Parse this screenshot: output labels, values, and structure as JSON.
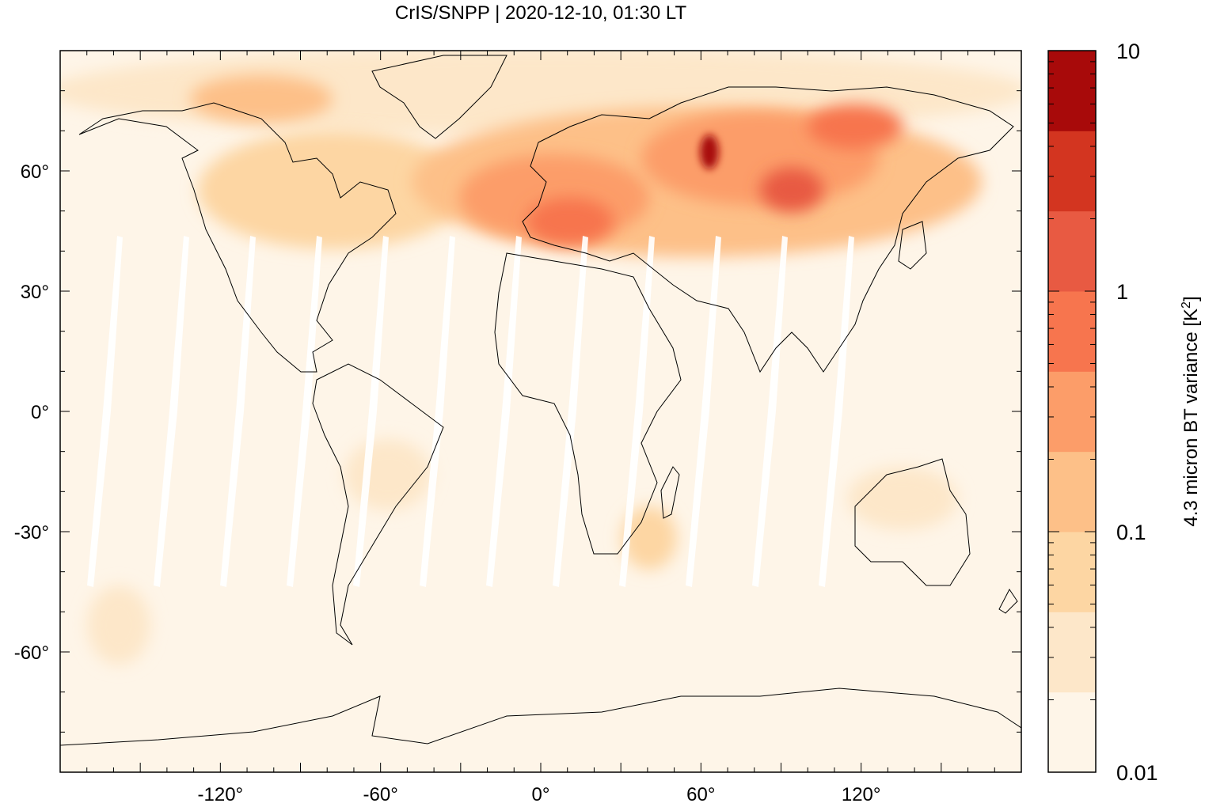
{
  "title": "CrIS/SNPP | 2020-12-10, 01:30 LT",
  "map": {
    "projection": "equirectangular",
    "lon_range": [
      -180,
      180
    ],
    "lat_range": [
      -90,
      90
    ],
    "x_ticks": [
      {
        "value": -120,
        "label": "-120°"
      },
      {
        "value": -60,
        "label": "-60°"
      },
      {
        "value": 0,
        "label": "0°"
      },
      {
        "value": 60,
        "label": "60°"
      },
      {
        "value": 120,
        "label": "120°"
      }
    ],
    "y_ticks": [
      {
        "value": 60,
        "label": "60°"
      },
      {
        "value": 30,
        "label": "30°"
      },
      {
        "value": 0,
        "label": "0°"
      },
      {
        "value": -30,
        "label": "-30°"
      },
      {
        "value": -60,
        "label": "-60°"
      }
    ],
    "coastlines": "black outline",
    "background_color": "#fef5e8",
    "swath_gap_color": "#ffffff",
    "notable_regions": [
      {
        "name": "high variance over Europe, Russia and Central Asia",
        "lon": [
          -20,
          130
        ],
        "lat": [
          35,
          75
        ]
      },
      {
        "name": "maximum over West Siberia",
        "lon": [
          60,
          62
        ],
        "lat": [
          58,
          64
        ]
      }
    ]
  },
  "colorbar": {
    "label": "4.3 micron BT variance [K²]",
    "label_main": "4.3 micron BT variance [K",
    "label_sup": "2",
    "label_end": "]",
    "scale": "log",
    "range": [
      0.01,
      10
    ],
    "ticks": [
      {
        "value": 10,
        "label": "10"
      },
      {
        "value": 1,
        "label": "1"
      },
      {
        "value": 0.1,
        "label": "0.1"
      },
      {
        "value": 0.01,
        "label": "0.01"
      }
    ],
    "colors": [
      "#fef5e8",
      "#fde7c9",
      "#fdd6a3",
      "#fdc088",
      "#fc9d69",
      "#f7754e",
      "#e85a42",
      "#d33520",
      "#a80a0a"
    ]
  },
  "chart_data": {
    "type": "heatmap",
    "title": "CrIS/SNPP | 2020-12-10, 01:30 LT",
    "xlabel": "",
    "ylabel": "",
    "xlim": [
      -180,
      180
    ],
    "ylim": [
      -90,
      90
    ],
    "colorbar_label": "4.3 micron BT variance [K²]",
    "color_scale": "log",
    "clim": [
      0.01,
      10
    ],
    "x_tick_labels": [
      "-120°",
      "-60°",
      "0°",
      "60°",
      "120°"
    ],
    "y_tick_labels": [
      "60°",
      "30°",
      "0°",
      "-30°",
      "-60°"
    ],
    "colorbar_tick_labels": [
      "10",
      "1",
      "0.1",
      "0.01"
    ],
    "grid": false
  }
}
